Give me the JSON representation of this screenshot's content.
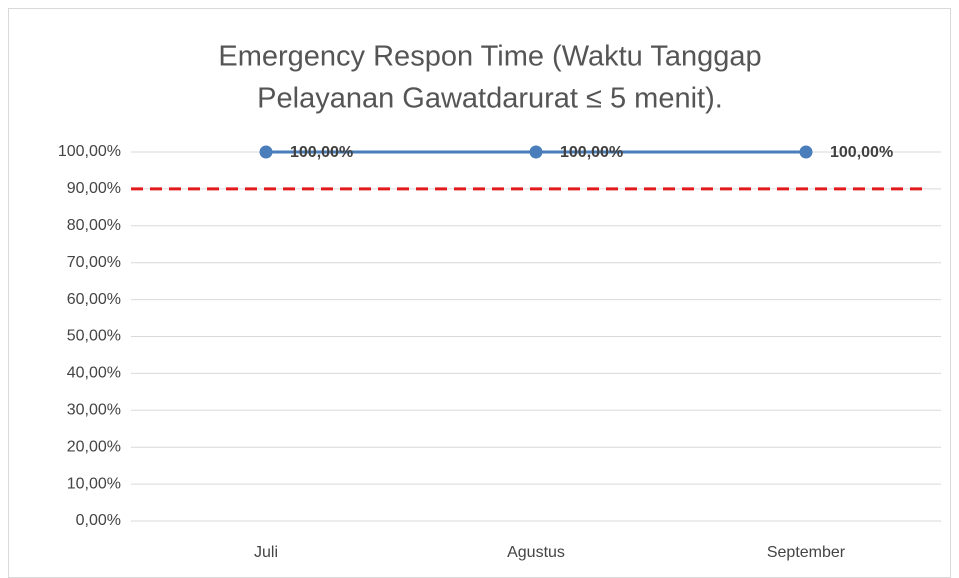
{
  "chart_data": {
    "type": "line",
    "title": [
      "Emergency Respon Time (Waktu Tanggap",
      "Pelayanan Gawatdarurat ≤ 5 menit)."
    ],
    "categories": [
      "Juli",
      "Agustus",
      "September"
    ],
    "series": [
      {
        "color": "#4a7ebb",
        "values": [
          100,
          100,
          100
        ],
        "value_labels": [
          "100,00%",
          "100,00%",
          "100,00%"
        ]
      }
    ],
    "reference_lines": [
      {
        "value": 90,
        "color": "#e31a1c",
        "style": "dashed"
      }
    ],
    "ylim": [
      0,
      100
    ],
    "yticks": [
      {
        "value": 0,
        "label": "0,00%"
      },
      {
        "value": 10,
        "label": "10,00%"
      },
      {
        "value": 20,
        "label": "20,00%"
      },
      {
        "value": 30,
        "label": "30,00%"
      },
      {
        "value": 40,
        "label": "40,00%"
      },
      {
        "value": 50,
        "label": "50,00%"
      },
      {
        "value": 60,
        "label": "60,00%"
      },
      {
        "value": 70,
        "label": "70,00%"
      },
      {
        "value": 80,
        "label": "80,00%"
      },
      {
        "value": 90,
        "label": "90,00%"
      },
      {
        "value": 100,
        "label": "100,00%"
      }
    ],
    "grid": true
  }
}
